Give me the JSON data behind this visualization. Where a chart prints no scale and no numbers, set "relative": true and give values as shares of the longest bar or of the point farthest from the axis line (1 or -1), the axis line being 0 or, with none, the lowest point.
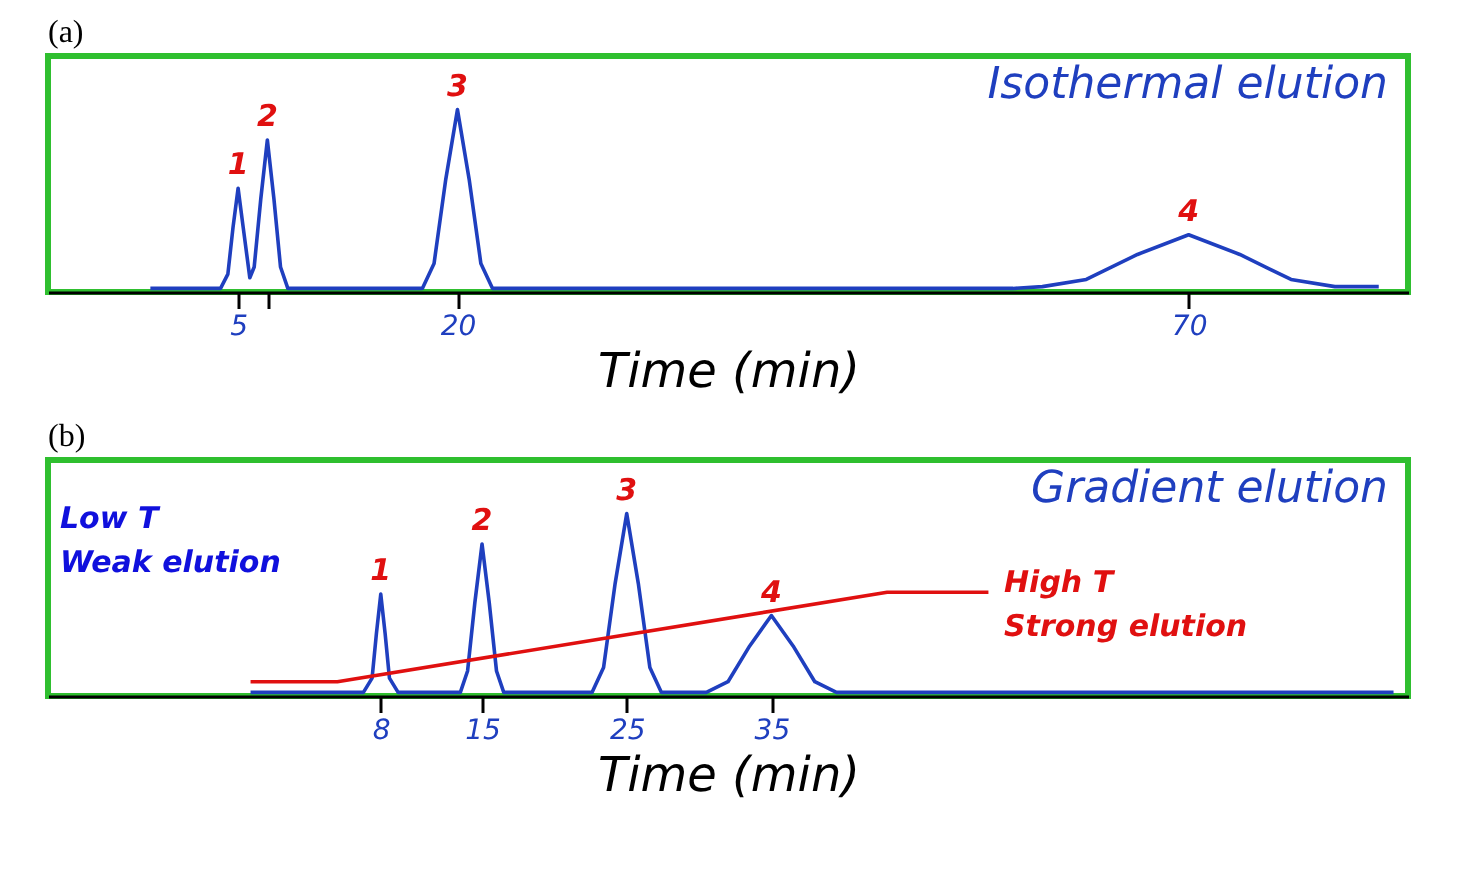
{
  "chart_data": [
    {
      "type": "line",
      "title": "(a)",
      "xlabel": "Time (min)",
      "relative": true,
      "grid": false,
      "legend": false,
      "marker": "none",
      "line_style": "solid",
      "xlim": [
        -8,
        85
      ],
      "xticks": [
        5,
        {
          "value": 7,
          "label": null
        },
        20,
        70
      ],
      "series": [
        {
          "color": "#1f3fbf",
          "x": [
            -1,
            3.8,
            4.3,
            4.65,
            5,
            5.35,
            5.8,
            6.1,
            6.55,
            7,
            7.45,
            7.9,
            8.4,
            17.6,
            18.4,
            19.2,
            20,
            20.8,
            21.6,
            22.4,
            58,
            60,
            63,
            66.5,
            70,
            73.5,
            77,
            80,
            83
          ],
          "values": [
            0,
            0,
            0.08,
            0.34,
            0.56,
            0.34,
            0.06,
            0.12,
            0.5,
            0.83,
            0.5,
            0.12,
            0,
            0,
            0.14,
            0.61,
            1,
            0.61,
            0.14,
            0,
            0,
            0.01,
            0.05,
            0.19,
            0.3,
            0.19,
            0.05,
            0.01,
            0.01
          ]
        }
      ],
      "annotations": [
        "Isothermal elution",
        {
          "text": "1",
          "x": 5,
          "y": 0.56
        },
        {
          "text": "2",
          "x": 7,
          "y": 0.83
        },
        {
          "text": "3",
          "x": 20,
          "y": 1
        },
        {
          "text": "4",
          "x": 70,
          "y": 0.3
        }
      ]
    },
    {
      "type": "line",
      "title": "(b)",
      "xlabel": "Time (min)",
      "relative": true,
      "grid": false,
      "legend": false,
      "marker": "none",
      "line_style": "solid",
      "xlim": [
        -15,
        79
      ],
      "xticks": [
        8,
        15,
        25,
        35
      ],
      "series": [
        {
          "color": "#1f3fbf",
          "x": [
            -1,
            6.8,
            7.4,
            7.7,
            8,
            8.3,
            8.6,
            9.2,
            13.5,
            14,
            14.5,
            15,
            15.5,
            16,
            16.5,
            22.6,
            23.4,
            24.2,
            25,
            25.8,
            26.6,
            27.4,
            30.5,
            32,
            33.5,
            35,
            36.5,
            38,
            39.5,
            78
          ],
          "values": [
            0,
            0,
            0.08,
            0.33,
            0.55,
            0.33,
            0.08,
            0,
            0,
            0.12,
            0.5,
            0.83,
            0.5,
            0.12,
            0,
            0,
            0.14,
            0.61,
            1,
            0.61,
            0.14,
            0,
            0,
            0.06,
            0.26,
            0.43,
            0.26,
            0.06,
            0,
            0
          ]
        },
        {
          "color": "#e01010",
          "x": [
            -1,
            5,
            43,
            50
          ],
          "values": [
            0.06,
            0.06,
            0.56,
            0.56
          ]
        }
      ],
      "annotations": [
        "Gradient elution",
        "Low T\nWeak elution",
        "High T\nStrong elution",
        {
          "text": "1",
          "x": 8,
          "y": 0.55
        },
        {
          "text": "2",
          "x": 15,
          "y": 0.83
        },
        {
          "text": "3",
          "x": 25,
          "y": 1
        },
        {
          "text": "4",
          "x": 35,
          "y": 0.43
        }
      ]
    }
  ]
}
